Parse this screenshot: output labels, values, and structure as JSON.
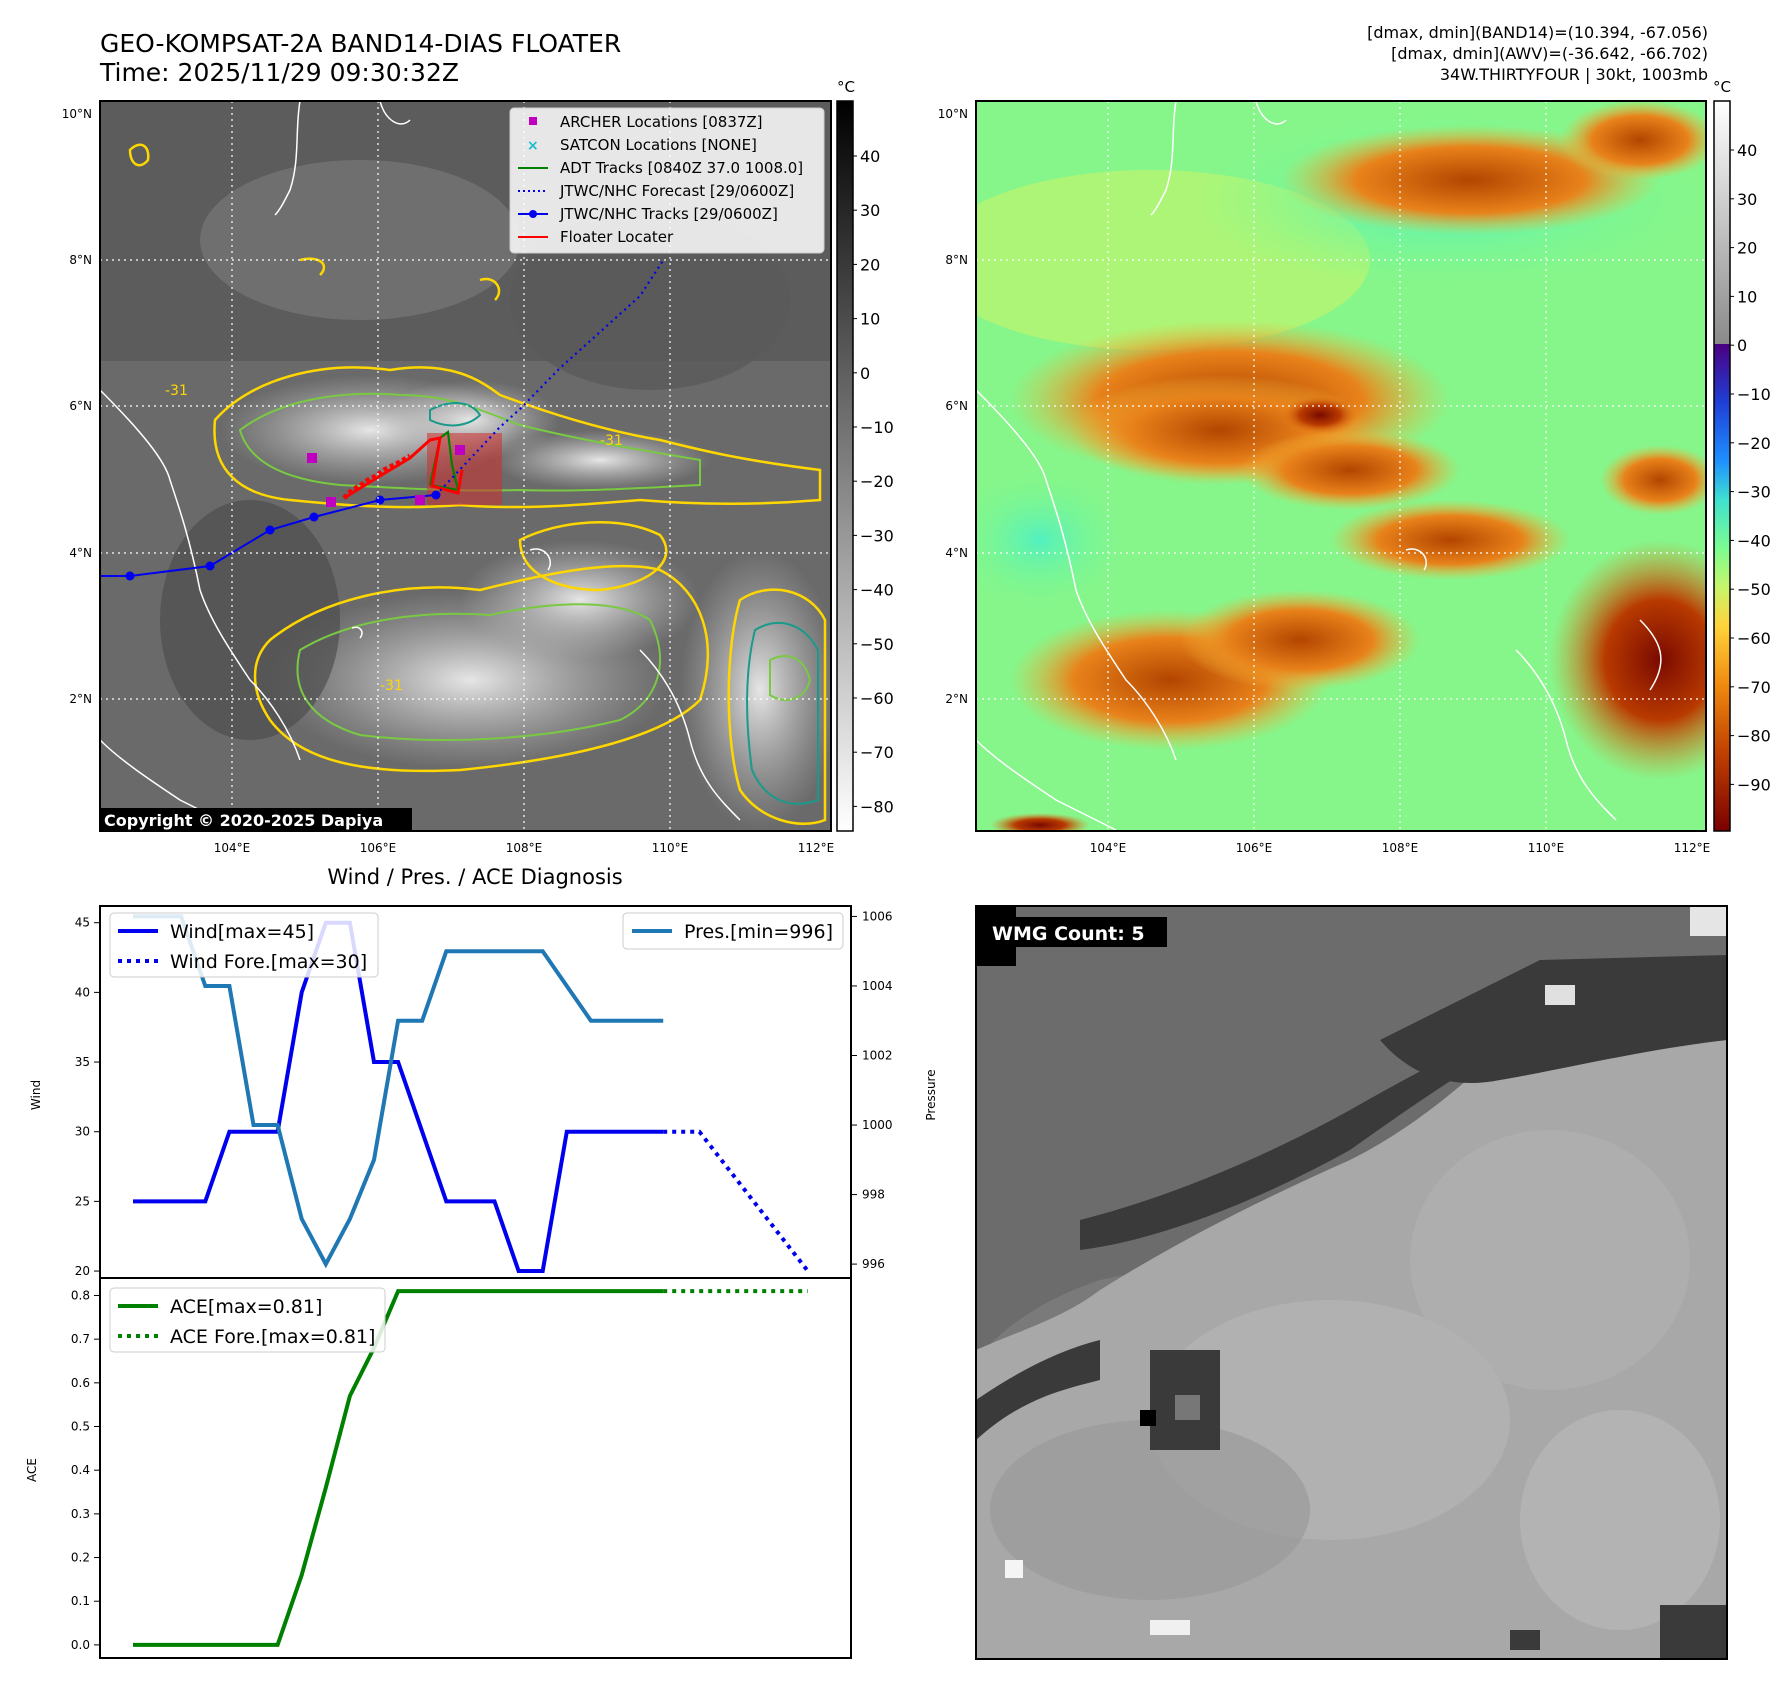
{
  "header": {
    "title_line1": "GEO-KOMPSAT-2A BAND14-DIAS FLOATER",
    "title_line2": "Time: 2025/11/29 09:30:32Z",
    "info_line1": "[dmax, dmin](BAND14)=(10.394, -67.056)",
    "info_line2": "[dmax, dmin](AWV)=(-36.642, -66.702)",
    "info_line3": "34W.THIRTYFOUR | 30kt, 1003mb"
  },
  "map": {
    "lat_ticks": [
      "10°N",
      "8°N",
      "6°N",
      "4°N",
      "2°N"
    ],
    "lon_ticks": [
      "104°E",
      "106°E",
      "108°E",
      "110°E",
      "112°E"
    ],
    "copyright": "Copyright © 2020-2025 Dapiya",
    "contour_label": "-31",
    "legend": [
      {
        "label": "ARCHER Locations [0837Z]",
        "color": "#c000c0",
        "marker": "square"
      },
      {
        "label": "SATCON Locations [NONE]",
        "color": "#17becf",
        "marker": "x"
      },
      {
        "label": "ADT Tracks [0840Z 37.0 1008.0]",
        "color": "#008000",
        "marker": "line"
      },
      {
        "label": "JTWC/NHC Forecast [29/0600Z]",
        "color": "#0000ff",
        "marker": "dotted"
      },
      {
        "label": "JTWC/NHC Tracks [29/0600Z]",
        "color": "#0000ff",
        "marker": "line-dot"
      },
      {
        "label": "Floater Locater",
        "color": "#ff0000",
        "marker": "line"
      }
    ],
    "colorbar_gray": {
      "unit": "°C",
      "ticks": [
        "40",
        "30",
        "20",
        "10",
        "0",
        "−10",
        "−20",
        "−30",
        "−40",
        "−50",
        "−60",
        "−70",
        "−80"
      ]
    },
    "colorbar_awv": {
      "unit": "°C",
      "ticks": [
        "40",
        "30",
        "20",
        "10",
        "0",
        "−10",
        "−20",
        "−30",
        "−40",
        "−50",
        "−60",
        "−70",
        "−80",
        "−90"
      ]
    }
  },
  "diagnosis": {
    "title": "Wind / Pres. / ACE Diagnosis",
    "wind_ylabel": "Wind",
    "pres_ylabel": "Pressure",
    "ace_ylabel": "ACE",
    "legend_wind": "Wind[max=45]",
    "legend_wind_fore": "Wind Fore.[max=30]",
    "legend_pres": "Pres.[min=996]",
    "legend_ace": "ACE[max=0.81]",
    "legend_ace_fore": "ACE Fore.[max=0.81]",
    "wmg_label": "WMG Count: 5"
  },
  "chart_data": [
    {
      "type": "line",
      "title": "Wind / Pres. / ACE Diagnosis",
      "ylabel": "Wind",
      "ylim": [
        19.5,
        46.2
      ],
      "y_ticks": [
        20,
        25,
        30,
        35,
        40,
        45
      ],
      "series": [
        {
          "name": "Wind[max=45]",
          "color": "#0000ee",
          "style": "solid",
          "x": [
            0,
            3,
            4,
            6,
            7,
            8,
            9,
            10,
            11,
            12,
            13,
            14,
            15,
            16,
            17,
            18,
            19,
            22
          ],
          "values": [
            25,
            25,
            30,
            30,
            40,
            45,
            45,
            35,
            35,
            30,
            25,
            25,
            25,
            20,
            20,
            30,
            30,
            30
          ]
        },
        {
          "name": "Wind Fore.[max=30]",
          "color": "#0000ee",
          "style": "dotted",
          "x": [
            22,
            23.5,
            28
          ],
          "values": [
            30,
            30,
            20
          ]
        }
      ]
    },
    {
      "type": "line",
      "ylabel": "Pressure",
      "ylim": [
        995.6,
        1006.3
      ],
      "y_ticks": [
        996,
        998,
        1000,
        1002,
        1004,
        1006
      ],
      "series": [
        {
          "name": "Pres.[min=996]",
          "color": "#1f77b4",
          "style": "solid",
          "x": [
            0,
            2,
            3,
            4,
            5,
            6,
            7,
            8,
            9,
            10,
            11,
            12,
            13,
            14,
            15,
            16,
            17,
            18,
            19,
            20,
            21,
            22
          ],
          "values": [
            1006,
            1006,
            1004,
            1004,
            1000,
            1000,
            997.3,
            996,
            997.3,
            999,
            1003,
            1003,
            1005,
            1005,
            1005,
            1005,
            1005,
            1004,
            1003,
            1003,
            1003,
            1003
          ]
        }
      ]
    },
    {
      "type": "line",
      "ylabel": "ACE",
      "ylim": [
        -0.03,
        0.84
      ],
      "y_ticks": [
        0.0,
        0.1,
        0.2,
        0.3,
        0.4,
        0.5,
        0.6,
        0.7,
        0.8
      ],
      "series": [
        {
          "name": "ACE[max=0.81]",
          "color": "#008000",
          "style": "solid",
          "x": [
            0,
            6,
            7,
            8,
            9,
            10,
            11,
            22
          ],
          "values": [
            0,
            0,
            0.16,
            0.36,
            0.57,
            0.68,
            0.81,
            0.81
          ]
        },
        {
          "name": "ACE Fore.[max=0.81]",
          "color": "#008000",
          "style": "dotted",
          "x": [
            22,
            28
          ],
          "values": [
            0.81,
            0.81
          ]
        }
      ]
    }
  ]
}
